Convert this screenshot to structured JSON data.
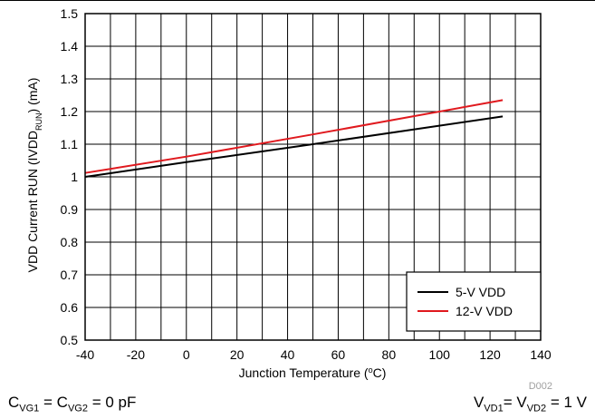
{
  "chart_data": {
    "type": "line",
    "xlabel": "Junction Temperature (",
    "xlabel_sup": "o",
    "xlabel_tail": "C)",
    "ylabel": "VDD Current RUN (IVDD",
    "ylabel_sub": "RUN",
    "ylabel_tail": ") (mA)",
    "xlim": [
      -40,
      140
    ],
    "ylim": [
      0.5,
      1.5
    ],
    "xticks": [
      -40,
      -20,
      0,
      20,
      40,
      60,
      80,
      100,
      120,
      140
    ],
    "yticks": [
      0.5,
      0.6,
      0.7,
      0.8,
      0.9,
      1,
      1.1,
      1.2,
      1.3,
      1.4,
      1.5
    ],
    "grid": true,
    "legend_position": "bottom-right",
    "series": [
      {
        "name": "5-V VDD",
        "color": "#000000",
        "x": [
          -40,
          0,
          50,
          125
        ],
        "y": [
          1.0,
          1.045,
          1.1,
          1.185
        ]
      },
      {
        "name": "12-V VDD",
        "color": "#e0191e",
        "x": [
          -40,
          0,
          50,
          125
        ],
        "y": [
          1.012,
          1.062,
          1.13,
          1.235
        ]
      }
    ],
    "annotation": "D002"
  },
  "conditions": {
    "left": {
      "a": "C",
      "a_sub": "VG1",
      "b": " = C",
      "b_sub": "VG2",
      "c": " = 0 pF"
    },
    "right": {
      "a": "V",
      "a_sub": "VD1",
      "b": "= V",
      "b_sub": "VD2",
      "c": " = 1 V"
    }
  }
}
